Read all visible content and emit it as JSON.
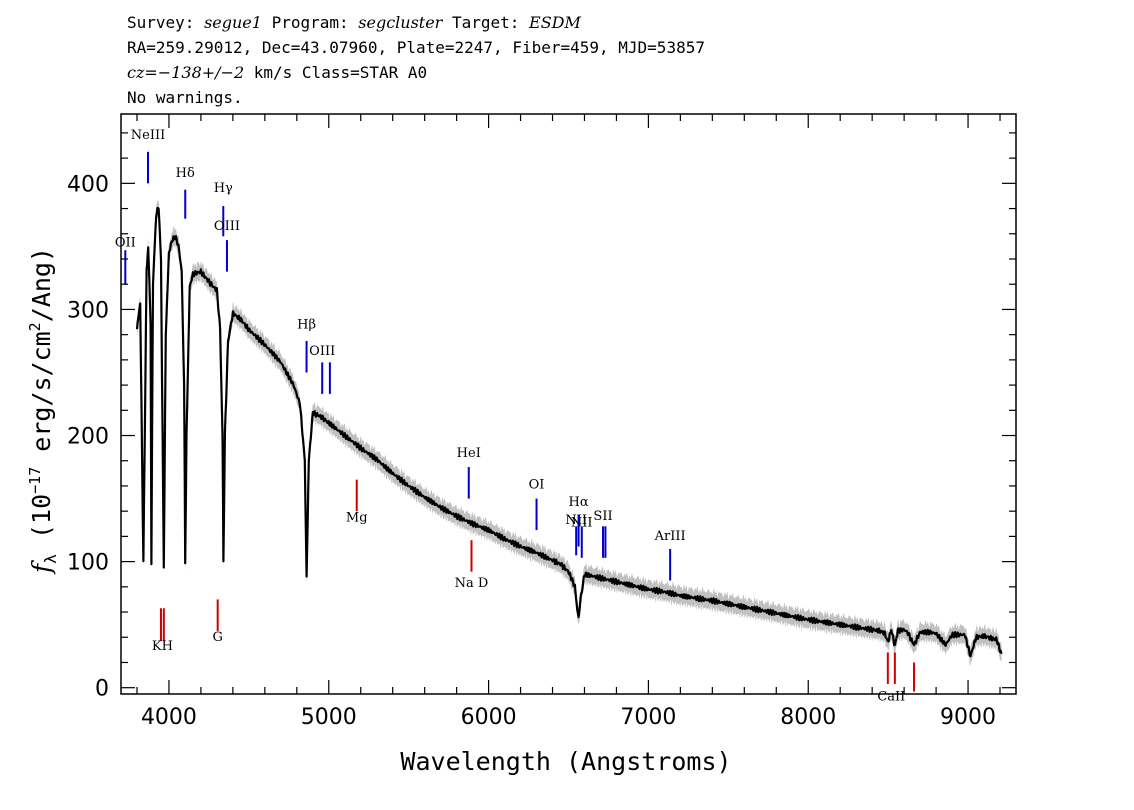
{
  "header": {
    "line1": {
      "survey_key": "Survey: ",
      "survey": "segue1",
      "program_key": " Program: ",
      "program": "segcluster",
      "target_key": " Target: ",
      "target": "ESDM"
    },
    "line2": "RA=259.29012, Dec=43.07960, Plate=2247, Fiber=459, MJD=53857",
    "line3": {
      "cz": "cz=−138+/−2",
      "rest": " km/s Class=STAR A0"
    },
    "line4": "No warnings."
  },
  "chart_data": {
    "type": "line",
    "xlabel": "Wavelength (Angstroms)",
    "ylabel": "f_λ (10^-17 erg/s/cm^2/Ang)",
    "xlim": [
      3700,
      9300
    ],
    "ylim": [
      -5,
      455
    ],
    "xticks": [
      4000,
      5000,
      6000,
      7000,
      8000,
      9000
    ],
    "yticks": [
      0,
      100,
      200,
      300,
      400
    ],
    "series": [
      {
        "color": "#000000",
        "error_color": "#c0c0c0",
        "points": [
          [
            3800,
            285
          ],
          [
            3820,
            305
          ],
          [
            3840,
            100
          ],
          [
            3860,
            330
          ],
          [
            3870,
            350
          ],
          [
            3885,
            290
          ],
          [
            3890,
            98
          ],
          [
            3900,
            320
          ],
          [
            3920,
            375
          ],
          [
            3935,
            382
          ],
          [
            3950,
            340
          ],
          [
            3960,
            200
          ],
          [
            3968,
            97
          ],
          [
            3980,
            280
          ],
          [
            4000,
            345
          ],
          [
            4020,
            355
          ],
          [
            4040,
            358
          ],
          [
            4060,
            350
          ],
          [
            4080,
            330
          ],
          [
            4095,
            240
          ],
          [
            4102,
            100
          ],
          [
            4110,
            200
          ],
          [
            4130,
            318
          ],
          [
            4150,
            328
          ],
          [
            4200,
            330
          ],
          [
            4250,
            322
          ],
          [
            4300,
            315
          ],
          [
            4320,
            285
          ],
          [
            4335,
            200
          ],
          [
            4341,
            102
          ],
          [
            4350,
            200
          ],
          [
            4370,
            275
          ],
          [
            4400,
            297
          ],
          [
            4450,
            292
          ],
          [
            4500,
            284
          ],
          [
            4600,
            272
          ],
          [
            4700,
            258
          ],
          [
            4780,
            240
          ],
          [
            4820,
            225
          ],
          [
            4850,
            180
          ],
          [
            4861,
            86
          ],
          [
            4875,
            180
          ],
          [
            4900,
            218
          ],
          [
            4950,
            215
          ],
          [
            5000,
            210
          ],
          [
            5100,
            200
          ],
          [
            5200,
            190
          ],
          [
            5300,
            181
          ],
          [
            5400,
            170
          ],
          [
            5500,
            160
          ],
          [
            5600,
            151
          ],
          [
            5700,
            143
          ],
          [
            5800,
            136
          ],
          [
            5900,
            130
          ],
          [
            6000,
            125
          ],
          [
            6100,
            118
          ],
          [
            6200,
            112
          ],
          [
            6300,
            107
          ],
          [
            6400,
            101
          ],
          [
            6450,
            98
          ],
          [
            6500,
            92
          ],
          [
            6540,
            80
          ],
          [
            6555,
            62
          ],
          [
            6563,
            55
          ],
          [
            6575,
            70
          ],
          [
            6600,
            90
          ],
          [
            6700,
            87
          ],
          [
            6800,
            84
          ],
          [
            6900,
            81
          ],
          [
            7000,
            78
          ],
          [
            7100,
            76
          ],
          [
            7200,
            73
          ],
          [
            7400,
            69
          ],
          [
            7600,
            64
          ],
          [
            7800,
            59
          ],
          [
            8000,
            54
          ],
          [
            8200,
            50
          ],
          [
            8400,
            46
          ],
          [
            8450,
            45
          ],
          [
            8480,
            43
          ],
          [
            8498,
            36
          ],
          [
            8520,
            46
          ],
          [
            8542,
            33
          ],
          [
            8560,
            45
          ],
          [
            8600,
            46
          ],
          [
            8620,
            44
          ],
          [
            8662,
            34
          ],
          [
            8700,
            44
          ],
          [
            8760,
            44
          ],
          [
            8800,
            43
          ],
          [
            8860,
            34
          ],
          [
            8900,
            42
          ],
          [
            8980,
            42
          ],
          [
            9015,
            25
          ],
          [
            9050,
            40
          ],
          [
            9100,
            41
          ],
          [
            9150,
            39
          ],
          [
            9180,
            38
          ],
          [
            9200,
            30
          ],
          [
            9210,
            27
          ]
        ]
      }
    ],
    "emission_lines": [
      {
        "label": "OII",
        "x": 3727,
        "y": [
          320,
          347
        ],
        "label_y": 350,
        "color": "#0000cc"
      },
      {
        "label": "NeIII",
        "x": 3869,
        "y": [
          400,
          425
        ],
        "label_y": 435,
        "color": "#0000cc"
      },
      {
        "label": "Hδ",
        "x": 4102,
        "y": [
          372,
          395
        ],
        "label_y": 405,
        "color": "#0000cc"
      },
      {
        "label": "Hγ",
        "x": 4340,
        "y": [
          358,
          382
        ],
        "label_y": 393,
        "color": "#0000cc"
      },
      {
        "label": "OIII",
        "x": 4363,
        "y": [
          330,
          355
        ],
        "label_y": 363,
        "color": "#0000cc"
      },
      {
        "label": "Hβ",
        "x": 4861,
        "y": [
          250,
          275
        ],
        "label_y": 285,
        "color": "#0000cc"
      },
      {
        "label": "OIII",
        "x": 4959,
        "y": [
          233,
          258
        ],
        "label_y": 264,
        "color": "#0000cc"
      },
      {
        "label": "",
        "x": 5007,
        "y": [
          233,
          258
        ],
        "label_y": 0,
        "color": "#0000cc"
      },
      {
        "label": "HeI",
        "x": 5876,
        "y": [
          150,
          175
        ],
        "label_y": 183,
        "color": "#0000cc"
      },
      {
        "label": "OI",
        "x": 6300,
        "y": [
          125,
          150
        ],
        "label_y": 158,
        "color": "#0000cc"
      },
      {
        "label": "NII",
        "x": 6548,
        "y": [
          105,
          128
        ],
        "label_y": 130,
        "color": "#0000cc"
      },
      {
        "label": "Hα",
        "x": 6563,
        "y": [
          112,
          137
        ],
        "label_y": 144,
        "color": "#0000cc"
      },
      {
        "label": "NII",
        "x": 6583,
        "y": [
          103,
          128
        ],
        "label_y": 128,
        "color": "#0000cc"
      },
      {
        "label": "SII",
        "x": 6716,
        "y": [
          103,
          128
        ],
        "label_y": 133,
        "color": "#0000cc"
      },
      {
        "label": "",
        "x": 6731,
        "y": [
          103,
          128
        ],
        "label_y": 0,
        "color": "#0000cc"
      },
      {
        "label": "ArIII",
        "x": 7136,
        "y": [
          85,
          110
        ],
        "label_y": 117,
        "color": "#0000cc"
      }
    ],
    "absorption_lines": [
      {
        "label": "KH",
        "x": 3950,
        "x2": 3968,
        "y": [
          37,
          63
        ],
        "label_y": 30,
        "color": "#cc0000"
      },
      {
        "label": "G",
        "x": 4305,
        "x2": null,
        "y": [
          45,
          70
        ],
        "label_y": 37,
        "color": "#cc0000"
      },
      {
        "label": "Mg",
        "x": 5175,
        "x2": null,
        "y": [
          140,
          165
        ],
        "label_y": 132,
        "color": "#cc0000"
      },
      {
        "label": "Na D",
        "x": 5893,
        "x2": null,
        "y": [
          92,
          117
        ],
        "label_y": 80,
        "color": "#cc0000"
      },
      {
        "label": "CaII",
        "x": 8498,
        "x2": 8542,
        "y": [
          3,
          28
        ],
        "label_y": -10,
        "color": "#cc0000"
      },
      {
        "label": "",
        "x": 8662,
        "x2": null,
        "y": [
          -3,
          20
        ],
        "label_y": 0,
        "color": "#cc0000"
      }
    ]
  }
}
